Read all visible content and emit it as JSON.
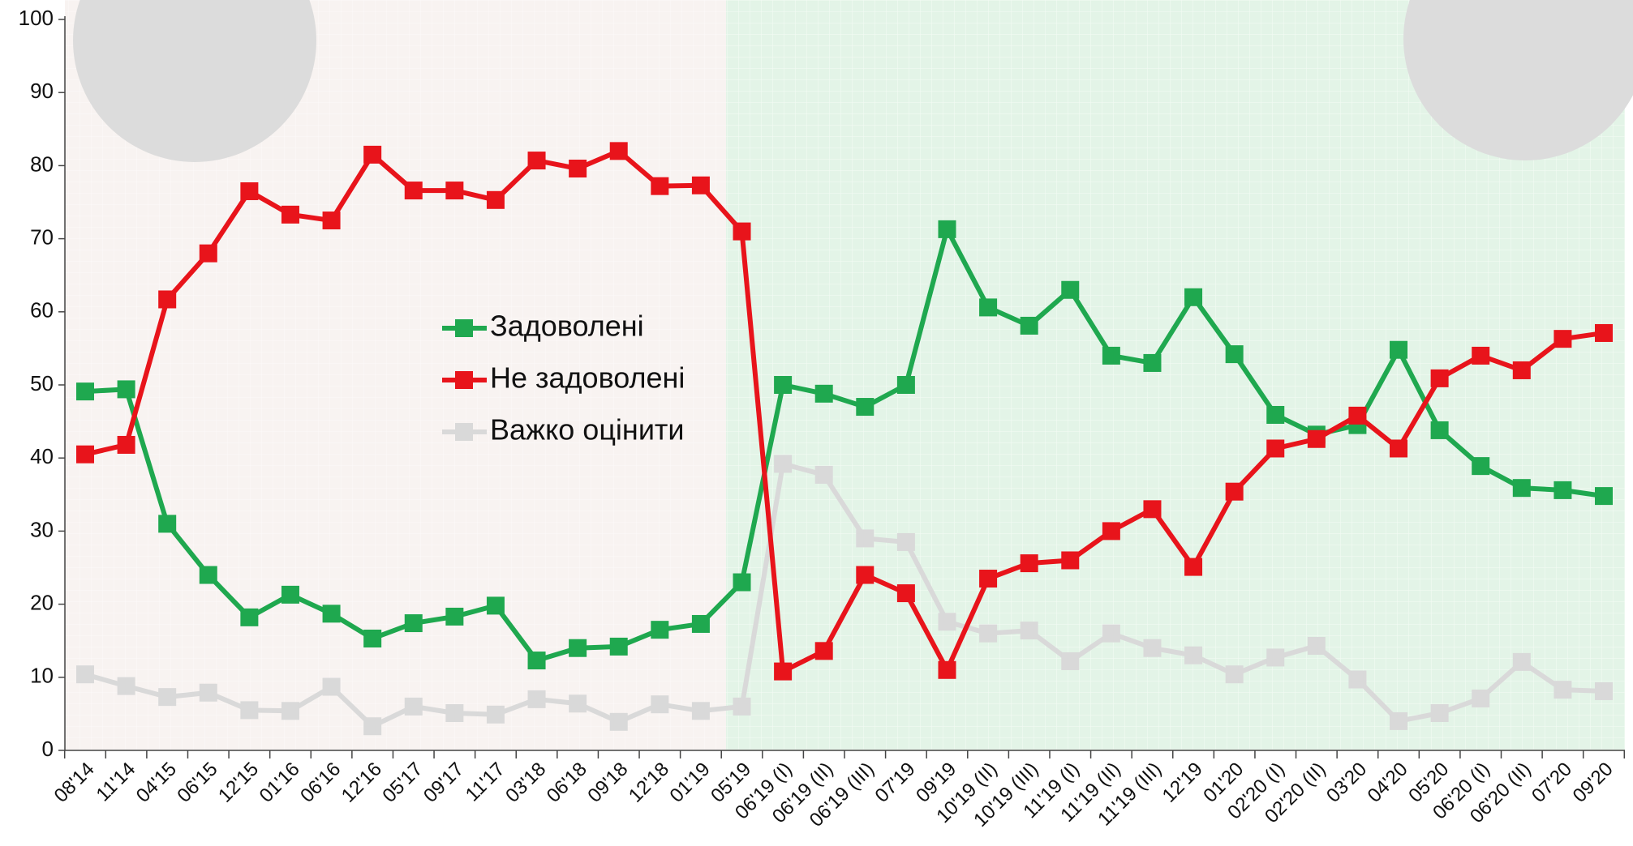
{
  "chart_data": {
    "type": "line",
    "categories": [
      "08'14",
      "11'14",
      "04'15",
      "06'15",
      "12'15",
      "01'16",
      "06'16",
      "12'16",
      "05'17",
      "09'17",
      "11'17",
      "03'18",
      "06'18",
      "09'18",
      "12'18",
      "01'19",
      "05'19",
      "06'19 (I)",
      "06'19 (II)",
      "06'19 (III)",
      "07'19",
      "09'19",
      "10'19 (II)",
      "10'19 (III)",
      "11'19 (I)",
      "11'19 (II)",
      "11'19 (III)",
      "12'19",
      "01'20",
      "02'20 (I)",
      "02'20 (II)",
      "03'20",
      "04'20",
      "05'20",
      "06'20 (I)",
      "06'20 (II)",
      "07'20",
      "09'20"
    ],
    "series": [
      {
        "name": "Задоволені",
        "color": "#1fa84f",
        "values": [
          49.1,
          49.4,
          31,
          24,
          18.2,
          21.3,
          18.7,
          15.3,
          17.4,
          18.3,
          19.8,
          12.3,
          14,
          14.2,
          16.5,
          17.3,
          23,
          50,
          48.8,
          47,
          50,
          71.3,
          60.6,
          58.1,
          63,
          54,
          53,
          62,
          54.2,
          45.9,
          43.2,
          44.5,
          54.8,
          43.8,
          38.9,
          35.9,
          35.6,
          34.8
        ]
      },
      {
        "name": "Не задоволені",
        "color": "#e8141b",
        "values": [
          40.5,
          41.8,
          61.7,
          68,
          76.5,
          73.3,
          72.5,
          81.5,
          76.6,
          76.6,
          75.3,
          80.7,
          79.6,
          82,
          77.2,
          77.3,
          71,
          10.8,
          13.6,
          24,
          21.5,
          11,
          23.5,
          25.6,
          26,
          30,
          33,
          25.1,
          35.4,
          41.3,
          42.6,
          45.8,
          41.3,
          50.9,
          54,
          52,
          56.3,
          57.1
        ]
      },
      {
        "name": "Важко оцінити",
        "color": "#d9d9d9",
        "values": [
          10.4,
          8.8,
          7.3,
          7.9,
          5.5,
          5.4,
          8.7,
          3.3,
          6,
          5.1,
          4.9,
          7,
          6.4,
          3.9,
          6.3,
          5.4,
          6,
          39.2,
          37.7,
          29,
          28.5,
          17.6,
          16,
          16.4,
          12.2,
          16,
          14,
          13,
          10.4,
          12.7,
          14.3,
          9.7,
          4,
          5.1,
          7.1,
          12.1,
          8.3,
          8.1
        ]
      }
    ],
    "ylim": [
      0,
      100
    ],
    "yticks": [
      0,
      10,
      20,
      30,
      40,
      50,
      60,
      70,
      80,
      90,
      100
    ]
  }
}
